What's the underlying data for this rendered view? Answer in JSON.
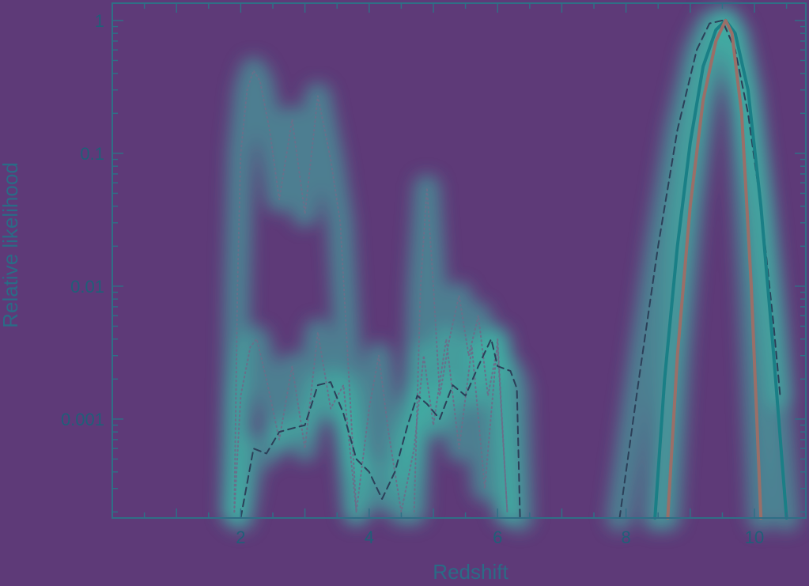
{
  "chart_data": {
    "type": "line",
    "title": "",
    "xlabel": "Redshift",
    "ylabel": "Relative likelihood",
    "xscale": "linear",
    "yscale": "log",
    "xlim": [
      0,
      10.8
    ],
    "ylim": [
      0.00018,
      1.35
    ],
    "xticks": [
      2,
      4,
      6,
      8,
      10
    ],
    "yticks": [
      {
        "value": 1,
        "label": "1"
      },
      {
        "value": 0.1,
        "label": "0.1"
      },
      {
        "value": 0.01,
        "label": "0.01"
      },
      {
        "value": 0.001,
        "label": "0.001"
      }
    ],
    "grid": false,
    "legend": "none",
    "colors": {
      "background": "#5e3a78",
      "axes": "#2f6f86",
      "solid_a": "#1a7f86",
      "solid_b": "#9a6f68",
      "dashed": "#2c3f58",
      "dotted": "#6a6f8a"
    },
    "series": [
      {
        "style": "dotted",
        "color": "#6a6f8a",
        "x": [
          1.9,
          1.95,
          2.0,
          2.1,
          2.2,
          2.3,
          2.45,
          2.6,
          2.8,
          3.0,
          3.2,
          3.4,
          3.55,
          3.7,
          3.8
        ],
        "y": [
          0.0002,
          0.01,
          0.1,
          0.3,
          0.42,
          0.35,
          0.15,
          0.045,
          0.18,
          0.035,
          0.27,
          0.09,
          0.03,
          0.0015,
          0.0002
        ]
      },
      {
        "style": "dotted",
        "color": "#6a6f8a",
        "x": [
          1.9,
          2.0,
          2.15,
          2.25,
          2.4,
          2.6,
          2.8,
          3.0,
          3.2,
          3.4,
          3.6,
          3.8,
          4.0,
          4.15,
          4.3,
          4.5,
          4.7,
          4.85,
          5.0,
          5.2,
          5.4,
          5.6,
          5.8,
          6.0,
          6.15
        ],
        "y": [
          0.0002,
          0.0015,
          0.0035,
          0.004,
          0.002,
          0.0007,
          0.0025,
          0.0006,
          0.0045,
          0.0012,
          0.0018,
          0.0002,
          0.0012,
          0.003,
          0.0008,
          0.0002,
          0.0006,
          0.003,
          0.0009,
          0.004,
          0.0006,
          0.0035,
          0.0003,
          0.004,
          0.0002
        ]
      },
      {
        "style": "dotted",
        "color": "#6a6f8a",
        "x": [
          4.7,
          4.8,
          4.9,
          5.0,
          5.1,
          5.25,
          5.4,
          5.55,
          5.7,
          5.85,
          6.0,
          6.15
        ],
        "y": [
          0.0002,
          0.01,
          0.055,
          0.01,
          0.0015,
          0.004,
          0.0085,
          0.003,
          0.006,
          0.0015,
          0.0035,
          0.0002
        ]
      },
      {
        "style": "dashed",
        "color": "#2c3f58",
        "x": [
          2.0,
          2.2,
          2.4,
          2.6,
          2.8,
          3.0,
          3.2,
          3.4,
          3.6,
          3.8,
          4.0,
          4.2,
          4.4,
          4.6,
          4.75,
          4.9,
          5.1,
          5.3,
          5.5,
          5.7,
          5.9,
          6.0,
          6.2,
          6.3,
          6.35
        ],
        "y": [
          0.00018,
          0.0006,
          0.00055,
          0.0008,
          0.00085,
          0.0009,
          0.0018,
          0.0019,
          0.0011,
          0.0005,
          0.0004,
          0.00025,
          0.0004,
          0.0009,
          0.0015,
          0.0013,
          0.001,
          0.0018,
          0.0015,
          0.0025,
          0.004,
          0.0025,
          0.0023,
          0.0017,
          0.00018
        ]
      },
      {
        "style": "dashed",
        "color": "#2c3f58",
        "x": [
          7.9,
          8.2,
          8.5,
          8.8,
          9.1,
          9.3,
          9.5,
          9.7,
          9.9,
          10.1,
          10.3,
          10.4
        ],
        "y": [
          0.00018,
          0.002,
          0.02,
          0.15,
          0.6,
          0.95,
          1.0,
          0.6,
          0.2,
          0.04,
          0.005,
          0.0015
        ]
      },
      {
        "style": "solid",
        "color": "#1a7f86",
        "x": [
          8.45,
          8.6,
          8.8,
          9.0,
          9.2,
          9.4,
          9.55,
          9.7,
          9.9,
          10.1,
          10.3,
          10.5
        ],
        "y": [
          0.00018,
          0.002,
          0.02,
          0.12,
          0.45,
          0.85,
          1.0,
          0.8,
          0.3,
          0.04,
          0.003,
          0.00018
        ]
      },
      {
        "style": "solid",
        "color": "#9a6f68",
        "x": [
          8.65,
          8.8,
          9.0,
          9.2,
          9.4,
          9.55,
          9.65,
          9.8,
          9.95,
          10.1
        ],
        "y": [
          0.00018,
          0.003,
          0.04,
          0.25,
          0.7,
          1.0,
          0.8,
          0.2,
          0.01,
          0.00018
        ]
      }
    ]
  }
}
